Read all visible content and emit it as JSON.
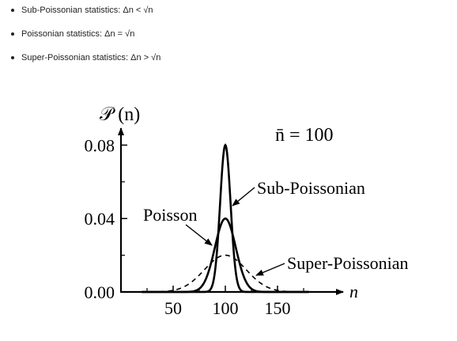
{
  "bullets": [
    "Sub-Poissonian statistics: Δn < √n",
    "Poissonian statistics: Δn = √n",
    "Super-Poissonian statistics: Δn > √n"
  ],
  "chart_data": {
    "type": "line",
    "title": "",
    "ylabel": "𝒫 (n)",
    "xlabel": "n",
    "xlim": [
      0,
      200
    ],
    "ylim": [
      0,
      0.09
    ],
    "xticks": [
      50,
      100,
      150
    ],
    "xtick_labels": [
      "50",
      "100",
      "150"
    ],
    "yticks": [
      0,
      0.04,
      0.08
    ],
    "ytick_labels": [
      "0.00",
      "0.04",
      "0.08"
    ],
    "mean_label": "n̄ = 100",
    "mean": 100,
    "grid": false,
    "legend": "none",
    "series": [
      {
        "name": "Sub-Poissonian",
        "style": "solid",
        "peak": 0.08,
        "std": 5
      },
      {
        "name": "Poisson",
        "style": "solid",
        "peak": 0.04,
        "std": 10
      },
      {
        "name": "Super-Poissonian",
        "style": "dashed",
        "peak": 0.02,
        "std": 20
      }
    ],
    "annotations": [
      "Sub-Poissonian",
      "Poisson",
      "Super-Poissonian"
    ]
  },
  "colors": {
    "curve": "#000000",
    "text": "#222222"
  }
}
